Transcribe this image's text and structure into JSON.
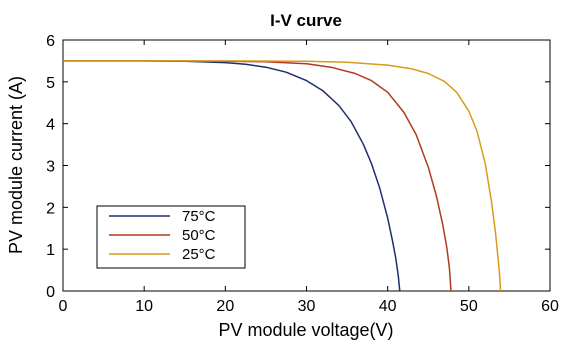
{
  "chart_data": {
    "type": "line",
    "title": "I-V curve",
    "xlabel": "PV module voltage(V)",
    "ylabel": "PV module current (A)",
    "xlim": [
      0,
      60
    ],
    "ylim": [
      0,
      6
    ],
    "xticks": [
      0,
      10,
      20,
      30,
      40,
      50,
      60
    ],
    "yticks": [
      0,
      1,
      2,
      3,
      4,
      5,
      6
    ],
    "grid": false,
    "legend_position": "lower-left",
    "series": [
      {
        "name": "75°C",
        "color": "#1f2f6e",
        "points": [
          [
            0,
            5.5
          ],
          [
            5,
            5.5
          ],
          [
            10,
            5.5
          ],
          [
            15,
            5.49
          ],
          [
            20,
            5.46
          ],
          [
            22.5,
            5.42
          ],
          [
            25,
            5.35
          ],
          [
            27.5,
            5.23
          ],
          [
            30,
            5.03
          ],
          [
            32,
            4.79
          ],
          [
            34,
            4.43
          ],
          [
            35.5,
            4.05
          ],
          [
            37,
            3.51
          ],
          [
            38,
            3.05
          ],
          [
            39,
            2.47
          ],
          [
            40,
            1.74
          ],
          [
            40.6,
            1.2
          ],
          [
            41,
            0.78
          ],
          [
            41.3,
            0.38
          ],
          [
            41.5,
            0.0
          ]
        ]
      },
      {
        "name": "50°C",
        "color": "#b03a1c",
        "points": [
          [
            0,
            5.5
          ],
          [
            10,
            5.5
          ],
          [
            20,
            5.49
          ],
          [
            25,
            5.48
          ],
          [
            30,
            5.43
          ],
          [
            33,
            5.35
          ],
          [
            36,
            5.2
          ],
          [
            38,
            5.03
          ],
          [
            40,
            4.75
          ],
          [
            42,
            4.27
          ],
          [
            43.5,
            3.74
          ],
          [
            45,
            2.96
          ],
          [
            46,
            2.27
          ],
          [
            46.8,
            1.57
          ],
          [
            47.3,
            1.02
          ],
          [
            47.6,
            0.55
          ],
          [
            47.8,
            0.0
          ]
        ]
      },
      {
        "name": "25°C",
        "color": "#d89c1a",
        "points": [
          [
            0,
            5.5
          ],
          [
            10,
            5.5
          ],
          [
            20,
            5.5
          ],
          [
            30,
            5.49
          ],
          [
            35,
            5.47
          ],
          [
            40,
            5.4
          ],
          [
            43,
            5.31
          ],
          [
            45,
            5.2
          ],
          [
            47,
            5.01
          ],
          [
            48.5,
            4.75
          ],
          [
            50,
            4.3
          ],
          [
            51,
            3.83
          ],
          [
            52,
            3.06
          ],
          [
            52.8,
            2.12
          ],
          [
            53.3,
            1.37
          ],
          [
            53.6,
            0.78
          ],
          [
            53.8,
            0.35
          ],
          [
            53.9,
            0.0
          ]
        ]
      }
    ]
  }
}
